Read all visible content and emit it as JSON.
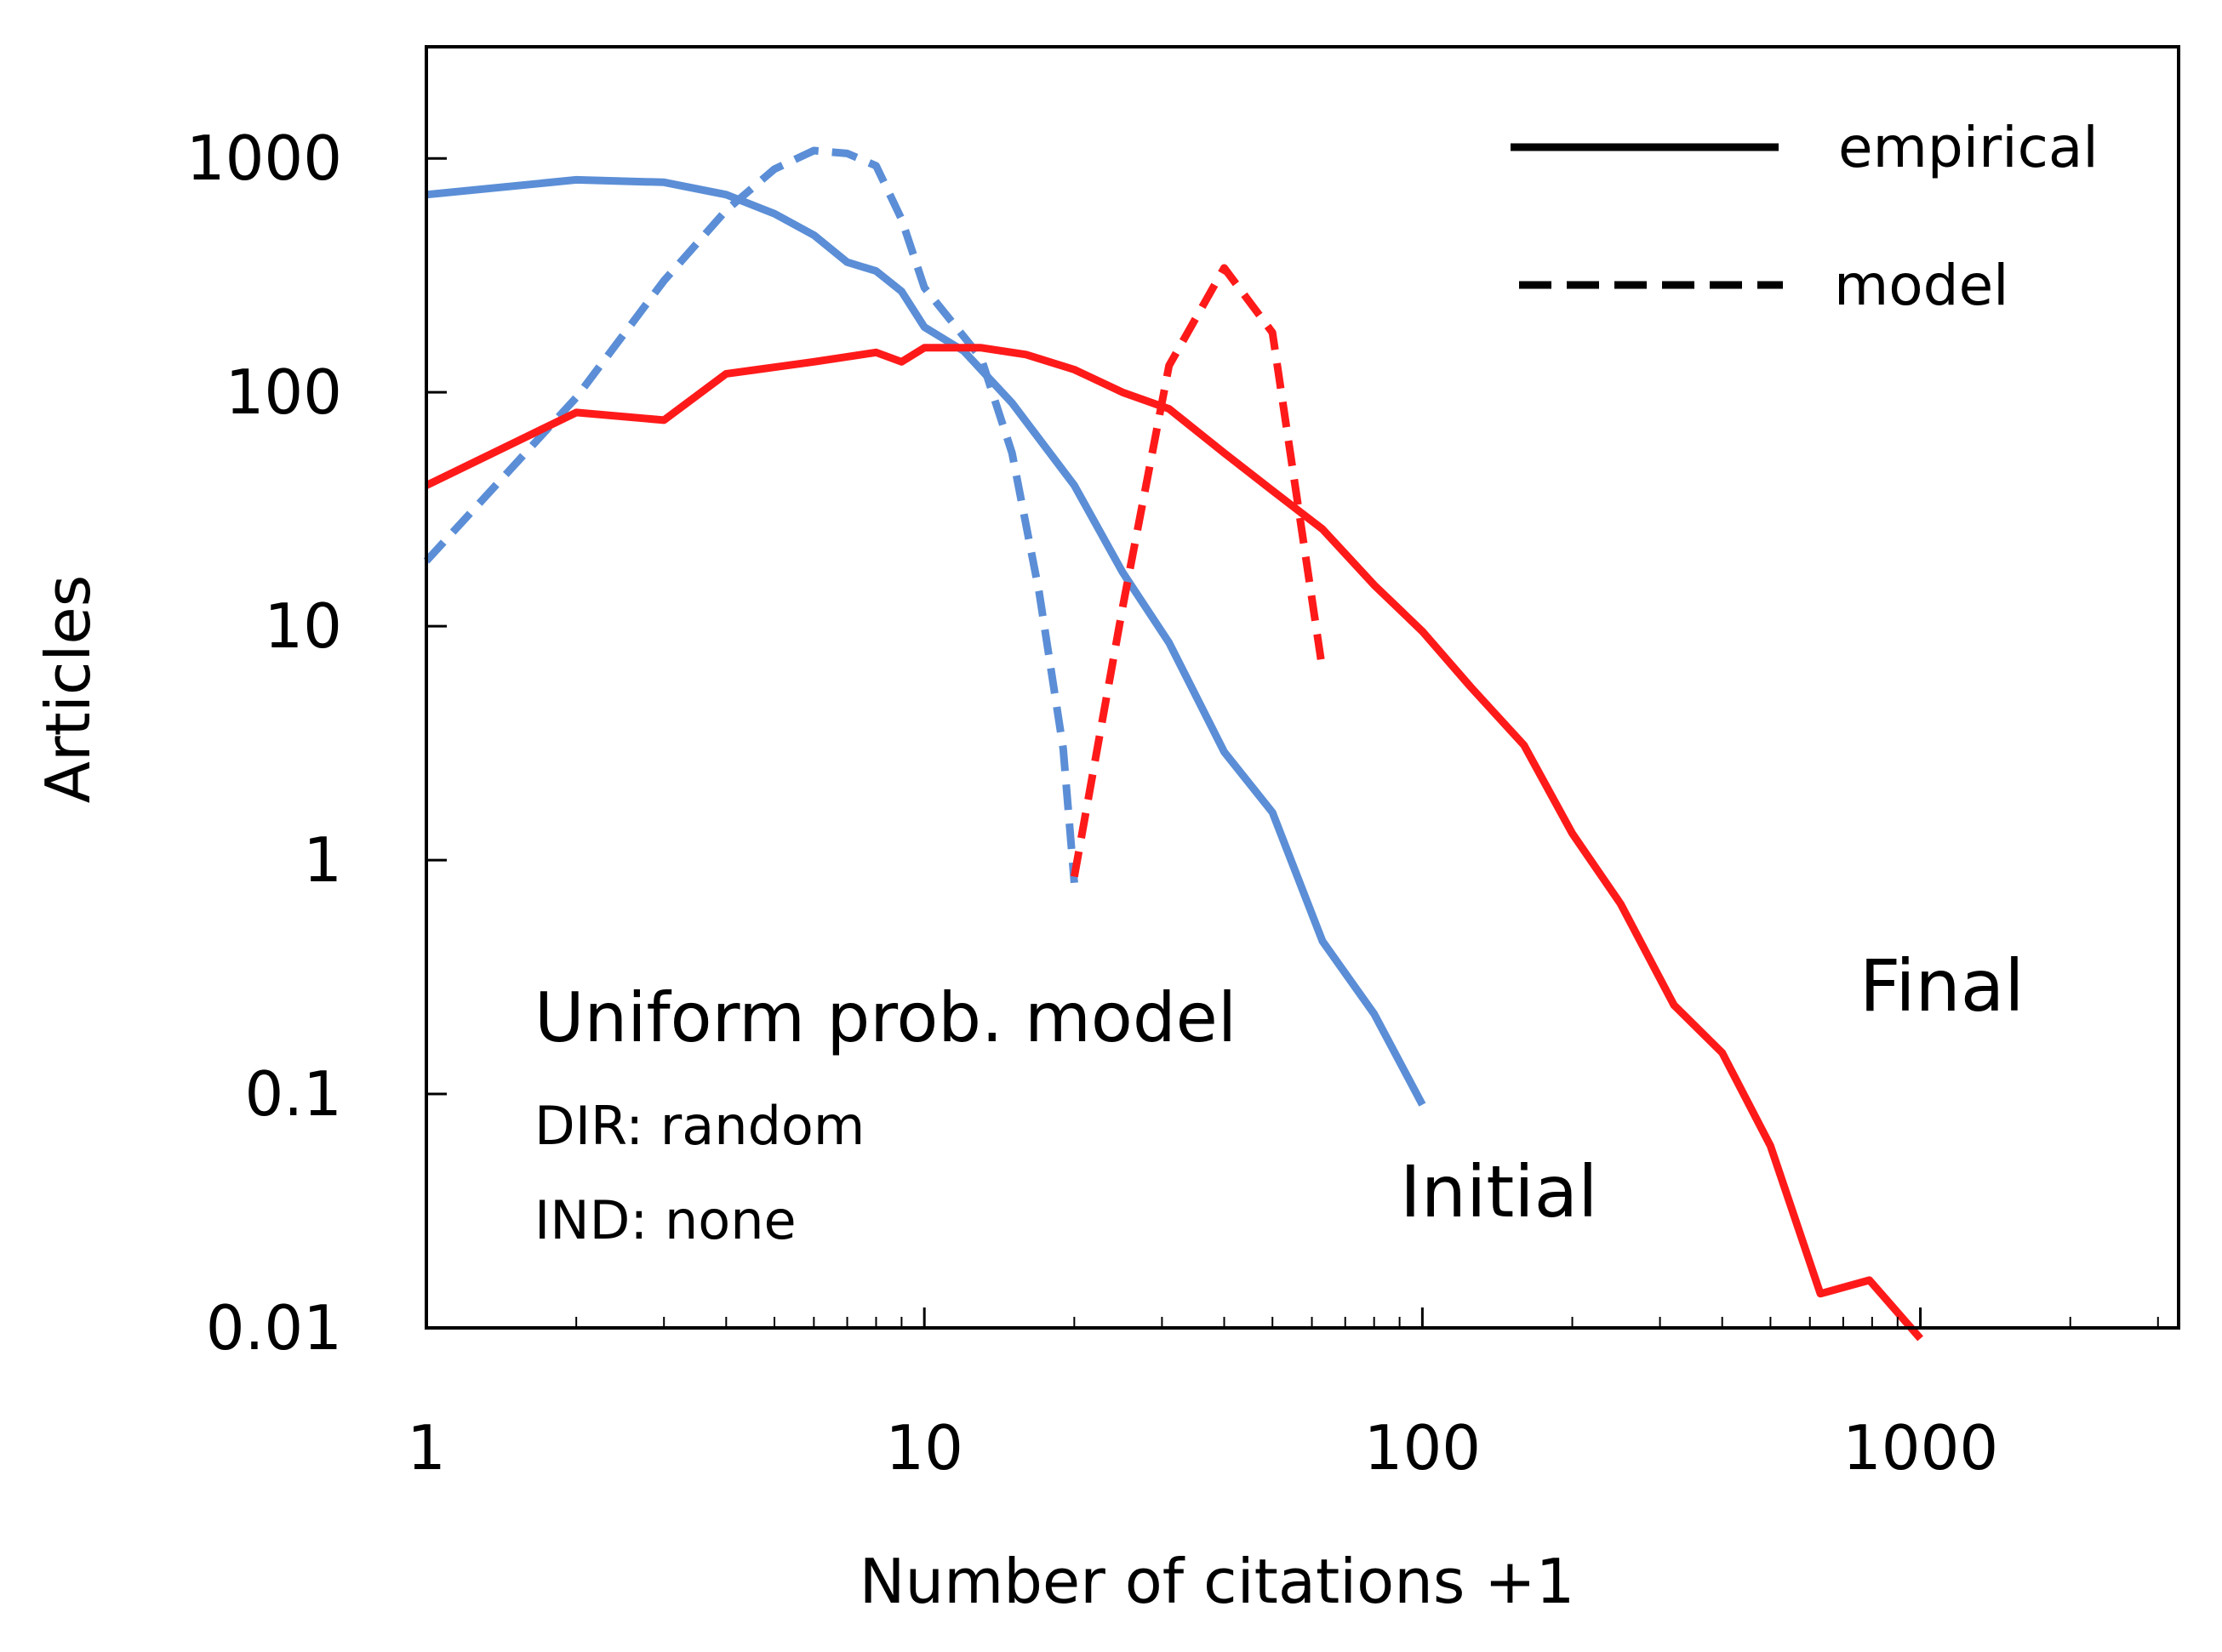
{
  "chart_data": {
    "type": "line",
    "xlabel": "Number of citations +1",
    "ylabel": "Articles",
    "xscale": "log",
    "yscale": "log",
    "xlim": [
      1,
      3300
    ],
    "ylim": [
      0.01,
      3000
    ],
    "x_ticks": [
      {
        "value": 1,
        "label": "1"
      },
      {
        "value": 10,
        "label": "10"
      },
      {
        "value": 100,
        "label": "100"
      },
      {
        "value": 1000,
        "label": "1000"
      }
    ],
    "y_ticks": [
      {
        "value": 0.01,
        "label": "0.01"
      },
      {
        "value": 0.1,
        "label": "0.1"
      },
      {
        "value": 1,
        "label": "1"
      },
      {
        "value": 10,
        "label": "10"
      },
      {
        "value": 100,
        "label": "100"
      },
      {
        "value": 1000,
        "label": "1000"
      }
    ],
    "legend": {
      "position": "top-right",
      "entries": [
        {
          "label": "empirical",
          "style": "solid"
        },
        {
          "label": "model",
          "style": "dashed"
        }
      ]
    },
    "series": [
      {
        "name": "Initial empirical",
        "color": "#5b8ed6",
        "style": "solid",
        "points": [
          [
            1,
            700
          ],
          [
            2,
            810
          ],
          [
            3,
            790
          ],
          [
            4,
            700
          ],
          [
            5,
            580
          ],
          [
            6,
            470
          ],
          [
            7,
            360
          ],
          [
            8,
            330
          ],
          [
            9,
            270
          ],
          [
            10,
            190
          ],
          [
            12,
            150
          ],
          [
            15,
            90
          ],
          [
            20,
            40
          ],
          [
            25,
            17
          ],
          [
            31,
            8.5
          ],
          [
            40,
            2.9
          ],
          [
            50,
            1.6
          ],
          [
            63,
            0.45
          ],
          [
            80,
            0.22
          ],
          [
            100,
            0.09
          ]
        ]
      },
      {
        "name": "Initial model",
        "color": "#5b8ed6",
        "style": "dashed",
        "points": [
          [
            1,
            19
          ],
          [
            2,
            95
          ],
          [
            3,
            300
          ],
          [
            4,
            600
          ],
          [
            5,
            900
          ],
          [
            6,
            1080
          ],
          [
            7,
            1050
          ],
          [
            8,
            930
          ],
          [
            9,
            550
          ],
          [
            10,
            280
          ],
          [
            13,
            140
          ],
          [
            15,
            55
          ],
          [
            17,
            14
          ],
          [
            19,
            3
          ],
          [
            20,
            0.8
          ]
        ]
      },
      {
        "name": "Final empirical",
        "color": "#ff1a1a",
        "style": "solid",
        "points": [
          [
            1,
            40
          ],
          [
            2,
            82
          ],
          [
            3,
            76
          ],
          [
            4,
            120
          ],
          [
            5,
            128
          ],
          [
            6,
            135
          ],
          [
            8,
            148
          ],
          [
            9,
            135
          ],
          [
            10,
            155
          ],
          [
            13,
            155
          ],
          [
            16,
            145
          ],
          [
            20,
            125
          ],
          [
            25,
            100
          ],
          [
            31,
            85
          ],
          [
            40,
            55
          ],
          [
            50,
            38
          ],
          [
            63,
            26
          ],
          [
            80,
            15
          ],
          [
            100,
            9.5
          ],
          [
            125,
            5.5
          ],
          [
            160,
            3.1
          ],
          [
            200,
            1.3
          ],
          [
            250,
            0.65
          ],
          [
            320,
            0.24
          ],
          [
            400,
            0.15
          ],
          [
            500,
            0.06
          ],
          [
            630,
            0.014
          ],
          [
            790,
            0.016
          ],
          [
            1000,
            0.009
          ]
        ]
      },
      {
        "name": "Final model",
        "color": "#ff1a1a",
        "style": "dashed",
        "points": [
          [
            20,
            0.85
          ],
          [
            25,
            12
          ],
          [
            31,
            130
          ],
          [
            40,
            340
          ],
          [
            50,
            180
          ],
          [
            63,
            6.5
          ]
        ]
      }
    ],
    "annotations": {
      "model_title": "Uniform prob. model",
      "dir_line": "DIR: random",
      "ind_line": "IND: none",
      "initial_label": "Initial",
      "final_label": "Final"
    }
  }
}
